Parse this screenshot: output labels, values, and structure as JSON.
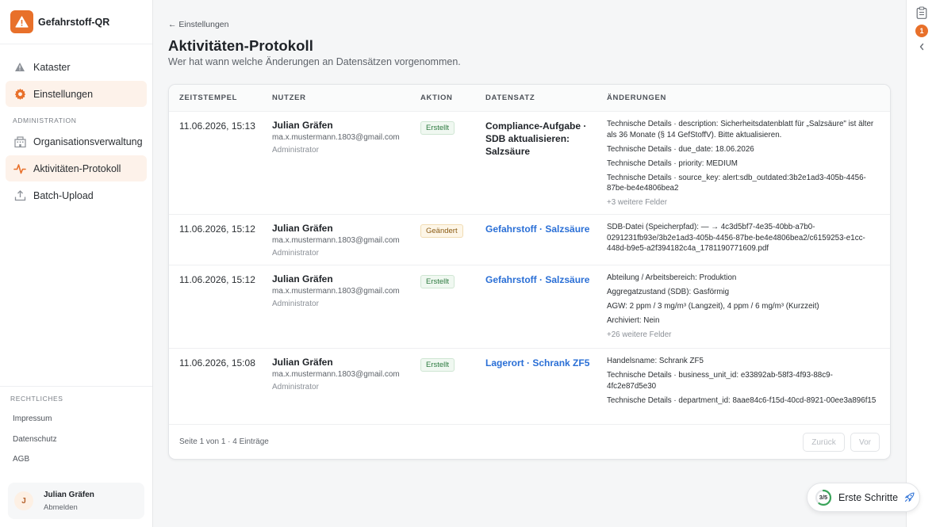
{
  "app": {
    "title": "Gefahrstoff-QR",
    "logo_icon": "warning-triangle-icon",
    "accent": "#e8702a"
  },
  "sidebar": {
    "main_items": [
      {
        "label": "Kataster",
        "icon": "warning-triangle-icon"
      },
      {
        "label": "Einstellungen",
        "icon": "gear-icon",
        "active": true
      }
    ],
    "admin_section_label": "ADMINISTRATION",
    "admin_items": [
      {
        "label": "Organisationsverwaltung",
        "icon": "building-icon"
      },
      {
        "label": "Aktivitäten-Protokoll",
        "icon": "activity-icon",
        "active": true
      },
      {
        "label": "Batch-Upload",
        "icon": "upload-icon"
      }
    ],
    "legal_section_label": "RECHTLICHES",
    "legal_links": [
      "Impressum",
      "Datenschutz",
      "AGB"
    ],
    "user": {
      "initial": "J",
      "name": "Julian Gräfen",
      "logout": "Abmelden"
    }
  },
  "main": {
    "back_link": "← Einstellungen",
    "title": "Aktivitäten-Protokoll",
    "subtitle": "Wer hat wann welche Änderungen an Datensätzen vorgenommen.",
    "columns": [
      "ZEITSTEMPEL",
      "NUTZER",
      "AKTION",
      "DATENSATZ",
      "ÄNDERUNGEN"
    ],
    "rows": [
      {
        "timestamp": "11.06.2026, 15:13",
        "user_name": "Julian Gräfen",
        "user_email": "ma.x.mustermann.1803@gmail.com",
        "user_role": "Administrator",
        "action": "Erstellt",
        "action_type": "created",
        "record": "Compliance-Aufgabe · SDB aktualisieren: Salzsäure",
        "record_is_link": false,
        "changes": [
          "Technische Details · description: Sicherheitsdatenblatt für „Salzsäure\" ist älter als 36 Monate (§ 14 GefStoffV). Bitte aktualisieren.",
          "Technische Details · due_date: 18.06.2026",
          "Technische Details · priority: MEDIUM",
          "Technische Details · source_key: alert:sdb_outdated:3b2e1ad3-405b-4456-87be-be4e4806bea2"
        ],
        "more": "+3 weitere Felder"
      },
      {
        "timestamp": "11.06.2026, 15:12",
        "user_name": "Julian Gräfen",
        "user_email": "ma.x.mustermann.1803@gmail.com",
        "user_role": "Administrator",
        "action": "Geändert",
        "action_type": "changed",
        "record": "Gefahrstoff · Salzsäure",
        "record_is_link": true,
        "changes": [
          "SDB-Datei (Speicherpfad): — → 4c3d5bf7-4e35-40bb-a7b0-0291231fb93e/3b2e1ad3-405b-4456-87be-be4e4806bea2/c6159253-e1cc-448d-b9e5-a2f394182c4a_1781190771609.pdf"
        ],
        "more": ""
      },
      {
        "timestamp": "11.06.2026, 15:12",
        "user_name": "Julian Gräfen",
        "user_email": "ma.x.mustermann.1803@gmail.com",
        "user_role": "Administrator",
        "action": "Erstellt",
        "action_type": "created",
        "record": "Gefahrstoff · Salzsäure",
        "record_is_link": true,
        "changes": [
          "Abteilung / Arbeitsbereich: Produktion",
          "Aggregatzustand (SDB): Gasförmig",
          "AGW: 2 ppm / 3 mg/m³ (Langzeit), 4 ppm / 6 mg/m³ (Kurzzeit)",
          "Archiviert: Nein"
        ],
        "more": "+26 weitere Felder"
      },
      {
        "timestamp": "11.06.2026, 15:08",
        "user_name": "Julian Gräfen",
        "user_email": "ma.x.mustermann.1803@gmail.com",
        "user_role": "Administrator",
        "action": "Erstellt",
        "action_type": "created",
        "record": "Lagerort · Schrank ZF5",
        "record_is_link": true,
        "changes": [
          "Handelsname: Schrank ZF5",
          "Technische Details · business_unit_id: e33892ab-58f3-4f93-88c9-4fc2e87d5e30",
          "Technische Details · department_id: 8aae84c6-f15d-40cd-8921-00ee3a896f15"
        ],
        "more": ""
      }
    ],
    "pagination": {
      "text": "Seite 1 von 1 · 4 Einträge",
      "prev": "Zurück",
      "next": "Vor"
    }
  },
  "rail": {
    "clipboard_icon": "clipboard-icon",
    "badge_count": "1",
    "collapse_icon": "chevron-left-icon"
  },
  "onboarding": {
    "progress": "3/5",
    "progress_fraction": 0.6,
    "label": "Erste Schritte",
    "icon": "rocket-icon"
  }
}
